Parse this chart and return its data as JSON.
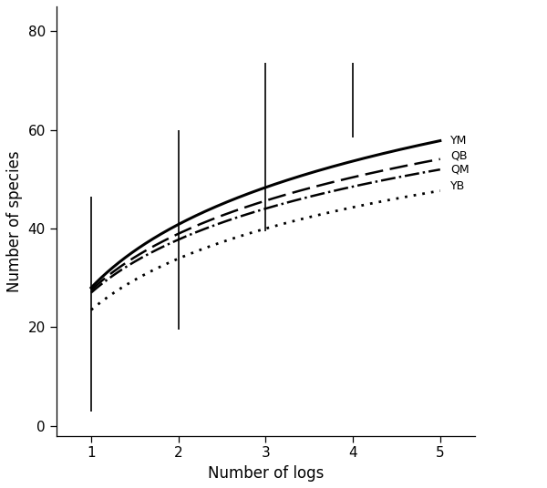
{
  "title": "",
  "xlabel": "Number of logs",
  "ylabel": "Number of species",
  "xlim": [
    0.6,
    5.4
  ],
  "ylim": [
    -2,
    85
  ],
  "xticks": [
    1,
    2,
    3,
    4,
    5
  ],
  "yticks": [
    0,
    20,
    40,
    60,
    80
  ],
  "YM_params": {
    "a": 28.0,
    "b": 18.5
  },
  "QB_params": {
    "a": 27.5,
    "b": 16.5
  },
  "QM_params": {
    "a": 27.0,
    "b": 15.5
  },
  "YB_params": {
    "a": 23.5,
    "b": 15.0
  },
  "error_bars": {
    "x": [
      1,
      2,
      3,
      4
    ],
    "ranges": [
      [
        3.0,
        46.5
      ],
      [
        19.5,
        60.0
      ],
      [
        39.5,
        73.5
      ],
      [
        58.5,
        73.5
      ]
    ]
  },
  "legend_labels": [
    "YM",
    "QB",
    "QM",
    "YB"
  ],
  "background_color": "#ffffff",
  "font_size": 12
}
